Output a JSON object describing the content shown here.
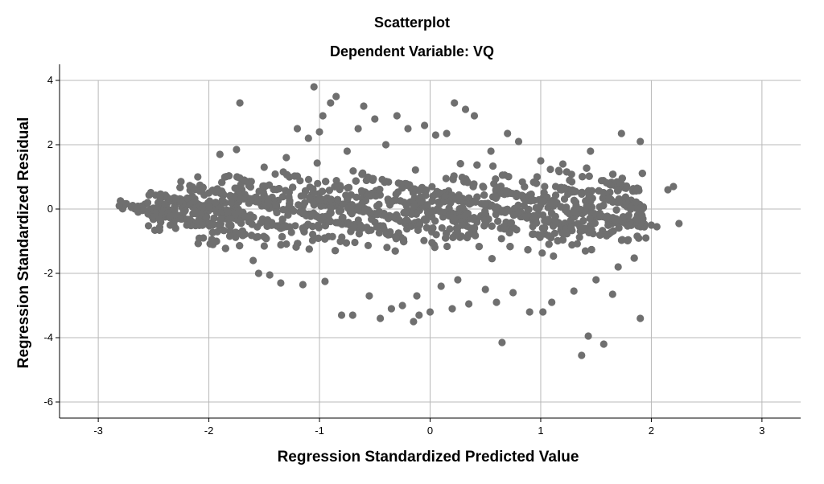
{
  "chart_data": {
    "type": "scatter",
    "title": "Scatterplot",
    "subtitle": "Dependent Variable: VQ",
    "xlabel": "Regression Standardized Predicted Value",
    "ylabel": "Regression Standardized Residual",
    "xlim": [
      -3.35,
      3.35
    ],
    "ylim": [
      -6.5,
      4.5
    ],
    "xticks": [
      -3,
      -2,
      -1,
      0,
      1,
      2,
      3
    ],
    "yticks": [
      4,
      2,
      0,
      -2,
      -4,
      -6
    ],
    "grid": true,
    "legend": "none",
    "point_color": "#6f6f6f",
    "series": [
      {
        "points_summary": "approximately 3000 points forming a band from x=-2.8 to x=2.25, residuals roughly -4.5 to 3.8, with diagonal striping",
        "points": [
          [
            -2.81,
            0.1
          ],
          [
            -2.7,
            0.05
          ],
          [
            -2.65,
            0.0
          ],
          [
            -2.55,
            -0.15
          ],
          [
            -2.5,
            -0.25
          ],
          [
            -2.45,
            -0.3
          ],
          [
            -2.4,
            0.15
          ],
          [
            -2.35,
            -0.5
          ],
          [
            -2.3,
            -0.6
          ],
          [
            -2.2,
            -0.5
          ],
          [
            -2.15,
            0.4
          ],
          [
            -2.1,
            1.0
          ],
          [
            -2.05,
            -0.9
          ],
          [
            -2.0,
            0.5
          ],
          [
            -1.95,
            -1.0
          ],
          [
            -1.9,
            1.7
          ],
          [
            -1.8,
            0.2
          ],
          [
            -1.75,
            1.85
          ],
          [
            -1.72,
            3.3
          ],
          [
            -1.68,
            0.9
          ],
          [
            -1.6,
            -1.6
          ],
          [
            -1.55,
            -2.0
          ],
          [
            -1.5,
            1.3
          ],
          [
            -1.45,
            -2.05
          ],
          [
            -1.35,
            -2.3
          ],
          [
            -1.3,
            1.6
          ],
          [
            -1.25,
            0.0
          ],
          [
            -1.2,
            2.5
          ],
          [
            -1.15,
            -2.35
          ],
          [
            -1.1,
            2.2
          ],
          [
            -1.05,
            0.5
          ],
          [
            -1.0,
            2.4
          ],
          [
            -0.97,
            2.9
          ],
          [
            -1.05,
            3.8
          ],
          [
            -0.95,
            -2.25
          ],
          [
            -0.9,
            3.3
          ],
          [
            -0.85,
            3.5
          ],
          [
            -0.8,
            -3.3
          ],
          [
            -0.75,
            1.8
          ],
          [
            -0.7,
            -3.3
          ],
          [
            -0.65,
            2.5
          ],
          [
            -0.6,
            3.2
          ],
          [
            -0.55,
            -2.7
          ],
          [
            -0.5,
            2.8
          ],
          [
            -0.45,
            -3.4
          ],
          [
            -0.4,
            2.0
          ],
          [
            -0.35,
            -3.1
          ],
          [
            -0.3,
            2.9
          ],
          [
            -0.25,
            -3.0
          ],
          [
            -0.2,
            2.5
          ],
          [
            -0.15,
            -3.5
          ],
          [
            -0.12,
            -2.7
          ],
          [
            -0.1,
            -3.3
          ],
          [
            -0.05,
            2.6
          ],
          [
            0.0,
            -3.2
          ],
          [
            0.05,
            2.3
          ],
          [
            0.1,
            -2.4
          ],
          [
            0.15,
            2.35
          ],
          [
            0.2,
            -3.1
          ],
          [
            0.22,
            3.3
          ],
          [
            0.25,
            -2.2
          ],
          [
            0.32,
            3.1
          ],
          [
            0.35,
            -2.95
          ],
          [
            0.4,
            2.9
          ],
          [
            0.5,
            -2.5
          ],
          [
            0.55,
            1.8
          ],
          [
            0.6,
            -2.9
          ],
          [
            0.65,
            -4.15
          ],
          [
            0.7,
            2.35
          ],
          [
            0.75,
            -2.6
          ],
          [
            0.8,
            2.1
          ],
          [
            0.9,
            -3.2
          ],
          [
            1.0,
            1.5
          ],
          [
            1.02,
            -3.2
          ],
          [
            1.1,
            -2.9
          ],
          [
            1.2,
            1.4
          ],
          [
            1.3,
            -2.55
          ],
          [
            1.37,
            -4.55
          ],
          [
            1.43,
            -3.95
          ],
          [
            1.45,
            1.8
          ],
          [
            1.5,
            -2.2
          ],
          [
            1.57,
            -4.2
          ],
          [
            1.65,
            -2.65
          ],
          [
            1.7,
            -1.8
          ],
          [
            1.73,
            2.35
          ],
          [
            1.8,
            -0.5
          ],
          [
            1.9,
            2.1
          ],
          [
            1.9,
            -3.4
          ],
          [
            1.95,
            -0.9
          ],
          [
            2.0,
            -0.5
          ],
          [
            2.05,
            -0.55
          ],
          [
            2.15,
            0.6
          ],
          [
            2.2,
            0.7
          ],
          [
            2.25,
            -0.45
          ]
        ]
      }
    ]
  }
}
